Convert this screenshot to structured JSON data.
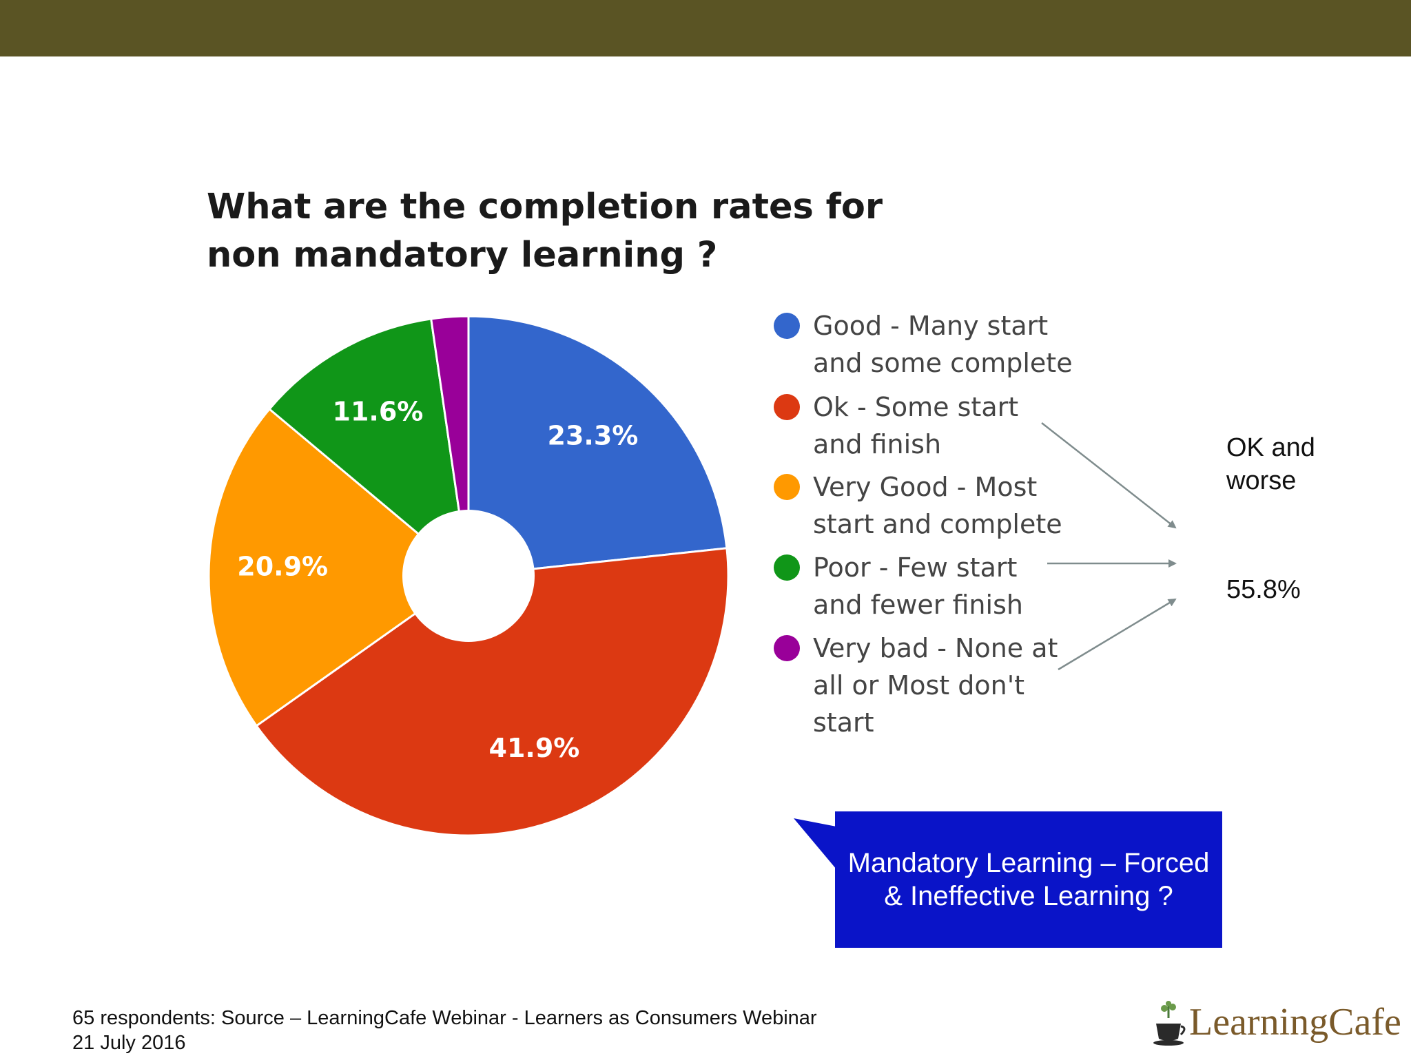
{
  "header": {
    "band_color": "#5a5424"
  },
  "chart_data": {
    "type": "pie",
    "title": "What are the completion rates for non mandatory learning ?",
    "donut": true,
    "slices": [
      {
        "label": "Good - Many start and some complete",
        "value": 23.3,
        "data_label": "23.3%",
        "color": "#3366cc"
      },
      {
        "label": "Ok - Some start and finish",
        "value": 41.9,
        "data_label": "41.9%",
        "color": "#dc3912"
      },
      {
        "label": "Very Good - Most start and complete",
        "value": 20.9,
        "data_label": "20.9%",
        "color": "#ff9900"
      },
      {
        "label": "Poor - Few start and fewer finish",
        "value": 11.6,
        "data_label": "11.6%",
        "color": "#109618"
      },
      {
        "label": "Very bad - None at all or Most don't start",
        "value": 2.3,
        "data_label": "",
        "color": "#990099"
      }
    ],
    "legend_position": "right"
  },
  "legend": {
    "items": [
      {
        "lines": [
          "Good - Many start",
          "and some complete"
        ],
        "color": "#3366cc"
      },
      {
        "lines": [
          "Ok - Some start",
          "and finish"
        ],
        "color": "#dc3912"
      },
      {
        "lines": [
          "Very Good - Most",
          "start and complete"
        ],
        "color": "#ff9900"
      },
      {
        "lines": [
          "Poor - Few start",
          "and fewer finish"
        ],
        "color": "#109618"
      },
      {
        "lines": [
          "Very bad - None at",
          "all or Most don't",
          "start"
        ],
        "color": "#990099"
      }
    ]
  },
  "annotation": {
    "label_line1": "OK and",
    "label_line2": "worse",
    "value": "55.8%"
  },
  "callout": {
    "line1": "Mandatory Learning – Forced",
    "line2": "& Ineffective Learning ?",
    "color": "#0a14c8"
  },
  "footer": {
    "line1": "65 respondents: Source – LearningCafe Webinar - Learners as Consumers Webinar",
    "line2": "21 July 2016"
  },
  "logo": {
    "text": "LearningCafe"
  }
}
